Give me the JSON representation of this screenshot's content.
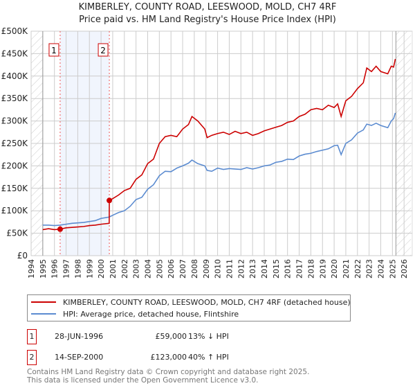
{
  "chart_data": {
    "type": "line",
    "title": "KIMBERLEY, COUNTY ROAD, LEESWOOD, MOLD, CH7 4RF",
    "subtitle": "Price paid vs. HM Land Registry's House Price Index (HPI)",
    "xlim": [
      1994,
      2026
    ],
    "ylim": [
      0,
      500000
    ],
    "x_ticks": [
      "1994",
      "1995",
      "1996",
      "1997",
      "1998",
      "1999",
      "2000",
      "2001",
      "2002",
      "2003",
      "2004",
      "2005",
      "2006",
      "2007",
      "2008",
      "2009",
      "2010",
      "2011",
      "2012",
      "2013",
      "2014",
      "2015",
      "2016",
      "2017",
      "2018",
      "2019",
      "2020",
      "2021",
      "2022",
      "2023",
      "2024",
      "2025",
      "2026"
    ],
    "y_ticks": [
      {
        "v": 0,
        "label": "£0"
      },
      {
        "v": 50000,
        "label": "£50K"
      },
      {
        "v": 100000,
        "label": "£100K"
      },
      {
        "v": 150000,
        "label": "£150K"
      },
      {
        "v": 200000,
        "label": "£200K"
      },
      {
        "v": 250000,
        "label": "£250K"
      },
      {
        "v": 300000,
        "label": "£300K"
      },
      {
        "v": 350000,
        "label": "£350K"
      },
      {
        "v": 400000,
        "label": "£400K"
      },
      {
        "v": 450000,
        "label": "£450K"
      },
      {
        "v": 500000,
        "label": "£500K"
      }
    ],
    "grid": true,
    "hatched_ranges": [
      [
        1994,
        1995
      ],
      [
        2025.3,
        2026.6
      ]
    ],
    "shaded_range": [
      1996.49,
      2000.71
    ],
    "series": [
      {
        "name": "KIMBERLEY, COUNTY ROAD, LEESWOOD, MOLD, CH7 4RF (detached house)",
        "color": "#cc0000",
        "x": [
          1995,
          1995.5,
          1996,
          1996.49,
          1997,
          1997.5,
          1998,
          1998.5,
          1999,
          1999.5,
          2000,
          2000.7,
          2000.71,
          2001,
          2001.5,
          2002,
          2002.5,
          2003,
          2003.5,
          2004,
          2004.5,
          2005,
          2005.5,
          2006,
          2006.5,
          2007,
          2007.5,
          2007.8,
          2008.3,
          2008.9,
          2009.1,
          2009.5,
          2010,
          2010.5,
          2011,
          2011.5,
          2012,
          2012.5,
          2013,
          2013.5,
          2014,
          2014.5,
          2015,
          2015.5,
          2016,
          2016.5,
          2017,
          2017.5,
          2018,
          2018.5,
          2019,
          2019.5,
          2020,
          2020.3,
          2020.6,
          2021,
          2021.5,
          2022,
          2022.5,
          2022.8,
          2023.2,
          2023.6,
          2024,
          2024.6,
          2024.9,
          2025.1,
          2025.25
        ],
        "y": [
          58000,
          60000,
          58000,
          59000,
          62000,
          63000,
          64000,
          65000,
          67000,
          68000,
          70000,
          72000,
          123000,
          127000,
          135000,
          145000,
          150000,
          170000,
          180000,
          205000,
          215000,
          250000,
          265000,
          268000,
          265000,
          282000,
          292000,
          310000,
          300000,
          282000,
          263000,
          268000,
          272000,
          275000,
          270000,
          277000,
          272000,
          275000,
          268000,
          272000,
          278000,
          282000,
          286000,
          290000,
          297000,
          300000,
          310000,
          315000,
          325000,
          328000,
          325000,
          335000,
          330000,
          338000,
          310000,
          345000,
          355000,
          372000,
          385000,
          418000,
          410000,
          422000,
          410000,
          405000,
          422000,
          420000,
          438000
        ]
      },
      {
        "name": "HPI: Average price, detached house, Flintshire",
        "color": "#5b8bd0",
        "x": [
          1995,
          1995.5,
          1996,
          1996.49,
          1997,
          1997.5,
          1998,
          1998.5,
          1999,
          1999.5,
          2000,
          2000.7,
          2001,
          2001.5,
          2002,
          2002.5,
          2003,
          2003.5,
          2004,
          2004.5,
          2005,
          2005.5,
          2006,
          2006.5,
          2007,
          2007.5,
          2007.8,
          2008.3,
          2008.9,
          2009.1,
          2009.5,
          2010,
          2010.5,
          2011,
          2011.5,
          2012,
          2012.5,
          2013,
          2013.5,
          2014,
          2014.5,
          2015,
          2015.5,
          2016,
          2016.5,
          2017,
          2017.5,
          2018,
          2018.5,
          2019,
          2019.5,
          2020,
          2020.3,
          2020.6,
          2021,
          2021.5,
          2022,
          2022.5,
          2022.8,
          2023.2,
          2023.6,
          2024,
          2024.6,
          2024.9,
          2025.1,
          2025.25
        ],
        "y": [
          68000,
          68000,
          67000,
          68000,
          70000,
          72000,
          73000,
          74000,
          76000,
          78000,
          83000,
          86000,
          90000,
          96000,
          100000,
          110000,
          125000,
          130000,
          148000,
          158000,
          178000,
          188000,
          187000,
          195000,
          200000,
          206000,
          213000,
          205000,
          200000,
          190000,
          188000,
          195000,
          192000,
          194000,
          193000,
          192000,
          196000,
          193000,
          196000,
          200000,
          202000,
          208000,
          210000,
          215000,
          214000,
          222000,
          226000,
          228000,
          232000,
          235000,
          238000,
          245000,
          246000,
          225000,
          250000,
          258000,
          273000,
          280000,
          293000,
          290000,
          295000,
          290000,
          285000,
          300000,
          305000,
          318000
        ]
      }
    ],
    "sales": [
      {
        "n": "1",
        "x": 1996.49,
        "y": 59000
      },
      {
        "n": "2",
        "x": 2000.71,
        "y": 123000
      }
    ]
  },
  "legend": {
    "red": "KIMBERLEY, COUNTY ROAD, LEESWOOD, MOLD, CH7 4RF (detached house)",
    "blue": "HPI: Average price, detached house, Flintshire"
  },
  "table": [
    {
      "n": "1",
      "date": "28-JUN-1996",
      "price": "£59,000",
      "hpi": "13% ↓ HPI"
    },
    {
      "n": "2",
      "date": "14-SEP-2000",
      "price": "£123,000",
      "hpi": "40% ↑ HPI"
    }
  ],
  "footer": {
    "line1": "Contains HM Land Registry data © Crown copyright and database right 2025.",
    "line2": "This data is licensed under the Open Government Licence v3.0."
  }
}
